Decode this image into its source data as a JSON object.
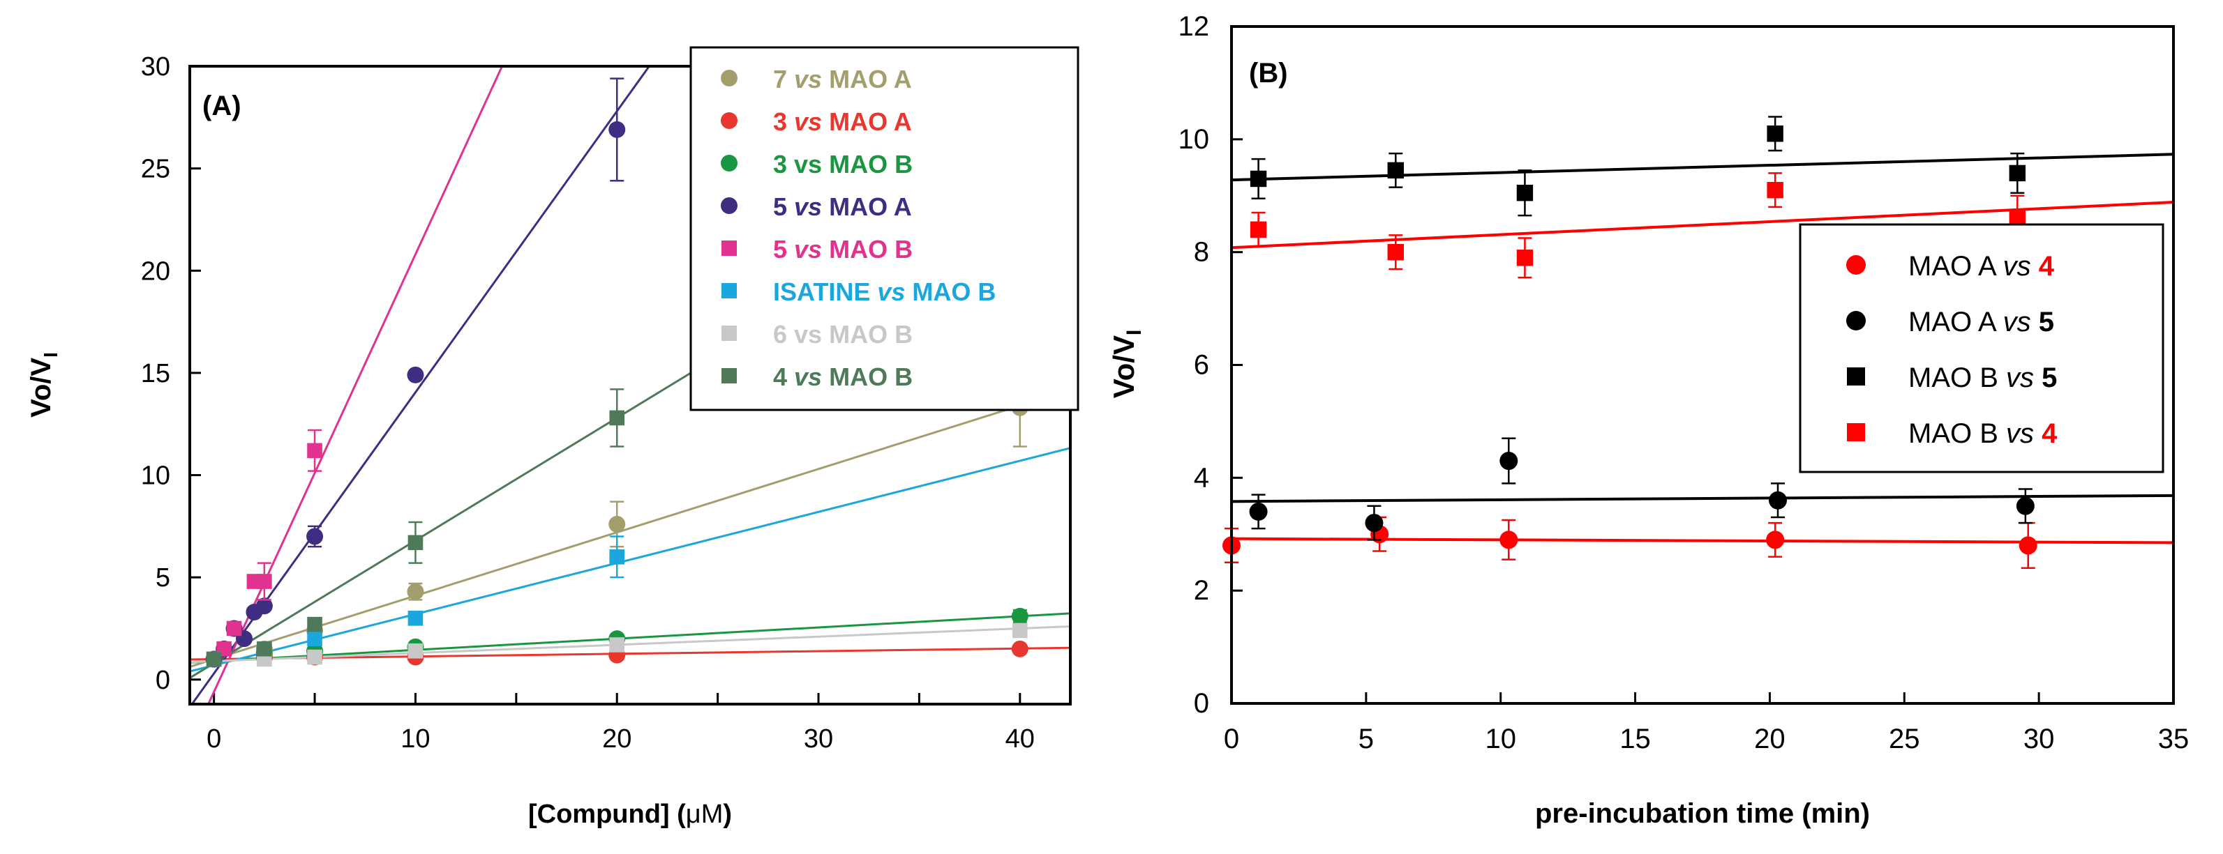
{
  "chart_data": [
    {
      "type": "scatter",
      "panel_label": "(A)",
      "xlabel_pre": "[Compund] (",
      "xlabel_mu": "μM",
      "xlabel_post": ")",
      "ylabel_main": "Vo/V",
      "ylabel_sub": "I",
      "xlim": [
        -1.2,
        42.5
      ],
      "ylim": [
        -1.2,
        30
      ],
      "xticks": [
        0,
        10,
        20,
        30,
        40
      ],
      "yticks": [
        0,
        5,
        10,
        15,
        20,
        25,
        30
      ],
      "legend_position": "top-right",
      "series": [
        {
          "num": "7",
          "vs": "vs",
          "enzyme": "MAO A",
          "vs_italic": true,
          "marker": "circle",
          "color": "#A39E6C",
          "x": [
            0,
            2.5,
            5,
            10,
            20,
            40
          ],
          "y": [
            1.0,
            1.5,
            2.4,
            4.3,
            7.6,
            13.3
          ],
          "err": [
            0,
            0,
            0,
            0.4,
            1.1,
            1.9
          ],
          "fit": {
            "slope": 0.31,
            "intercept": 1.0
          }
        },
        {
          "num": "3",
          "vs": "vs",
          "enzyme": "MAO A",
          "vs_italic": true,
          "marker": "circle",
          "color": "#E8372E",
          "x": [
            0,
            2.5,
            5,
            10,
            20,
            40
          ],
          "y": [
            1.0,
            1.1,
            1.1,
            1.1,
            1.2,
            1.5
          ],
          "err": [
            0,
            0,
            0,
            0,
            0,
            0
          ],
          "fit": {
            "slope": 0.013,
            "intercept": 1.0
          }
        },
        {
          "num": "3",
          "vs": "vs",
          "enzyme": "MAO B",
          "vs_italic": false,
          "marker": "circle",
          "color": "#1A9641",
          "x": [
            0,
            2.5,
            5,
            10,
            20,
            40
          ],
          "y": [
            1.0,
            1.3,
            1.4,
            1.6,
            2.0,
            3.1
          ],
          "err": [
            0,
            0,
            0,
            0,
            0,
            0.3
          ],
          "fit": {
            "slope": 0.055,
            "intercept": 0.9
          }
        },
        {
          "num": "5",
          "vs": "vs",
          "enzyme": "MAO A",
          "vs_italic": true,
          "marker": "circle",
          "color": "#3F2D82",
          "x": [
            0,
            0.5,
            1,
            1.5,
            2,
            2.5,
            5,
            10,
            20
          ],
          "y": [
            1.0,
            1.5,
            2.5,
            2.0,
            3.3,
            3.6,
            7.0,
            14.9,
            26.9
          ],
          "err": [
            0,
            0,
            0,
            0,
            0,
            0,
            0.5,
            0,
            2.5
          ],
          "fit": {
            "slope": 1.375,
            "intercept": 0.3
          }
        },
        {
          "num": "5",
          "vs": "vs",
          "enzyme": "MAO B",
          "vs_italic": true,
          "marker": "square",
          "color": "#E0328E",
          "x": [
            0,
            0.5,
            1,
            2,
            2.5,
            5
          ],
          "y": [
            1.0,
            1.5,
            2.5,
            4.8,
            4.8,
            11.2
          ],
          "err": [
            0,
            0,
            0,
            0,
            0.9,
            1.0
          ],
          "fit": {
            "slope": 2.14,
            "intercept": -0.6
          }
        },
        {
          "num": "ISATINE",
          "vs": "vs",
          "enzyme": "MAO B",
          "vs_italic": true,
          "marker": "square",
          "color": "#1BA6DD",
          "x": [
            0,
            2.5,
            5,
            10,
            20
          ],
          "y": [
            1.0,
            1.4,
            2.0,
            3.0,
            6.0
          ],
          "err": [
            0,
            0,
            0,
            0,
            1.0
          ],
          "fit": {
            "slope": 0.25,
            "intercept": 0.7
          }
        },
        {
          "num": "6",
          "vs": "vs",
          "enzyme": "MAO B",
          "vs_italic": false,
          "marker": "square",
          "color": "#C8C8C8",
          "x": [
            0,
            2.5,
            5,
            10,
            20,
            40
          ],
          "y": [
            1.0,
            1.0,
            1.1,
            1.4,
            1.7,
            2.4
          ],
          "err": [
            0,
            0,
            0,
            0,
            0,
            0
          ],
          "fit": {
            "slope": 0.04,
            "intercept": 0.9
          }
        },
        {
          "num": "4",
          "vs": "vs",
          "enzyme": "MAO B",
          "vs_italic": true,
          "marker": "square",
          "color": "#4F7A5A",
          "x": [
            0,
            2.5,
            5,
            10,
            20
          ],
          "y": [
            1.0,
            1.5,
            2.7,
            6.7,
            12.8
          ],
          "err": [
            0,
            0,
            0,
            1.0,
            1.4
          ],
          "fit": {
            "slope": 0.6,
            "intercept": 0.8
          }
        }
      ]
    },
    {
      "type": "scatter",
      "panel_label": "(B)",
      "xlabel": "pre-incubation time (min)",
      "ylabel_main": "Vo/V",
      "ylabel_sub": "I",
      "xlim": [
        0,
        35
      ],
      "ylim": [
        0,
        12
      ],
      "xticks": [
        0,
        5,
        10,
        15,
        20,
        25,
        30,
        35
      ],
      "yticks": [
        0,
        2,
        4,
        6,
        8,
        10,
        12
      ],
      "legend_position": "center-right",
      "series": [
        {
          "enzyme": "MAO A",
          "vs": "vs",
          "num": "4",
          "marker": "circle",
          "color": "#FF0000",
          "num_color": "#FF0000",
          "x": [
            0,
            5.5,
            10.3,
            20.2,
            29.6
          ],
          "y": [
            2.8,
            3.0,
            2.9,
            2.9,
            2.8
          ],
          "err": [
            0.3,
            0.3,
            0.35,
            0.3,
            0.4
          ],
          "fit": {
            "slope": -0.002,
            "intercept": 2.92
          }
        },
        {
          "enzyme": "MAO A",
          "vs": "vs",
          "num": "5",
          "marker": "circle",
          "color": "#000000",
          "num_color": "#000000",
          "x": [
            1,
            5.3,
            10.3,
            20.3,
            29.5
          ],
          "y": [
            3.4,
            3.2,
            4.3,
            3.6,
            3.5
          ],
          "err": [
            0.3,
            0.3,
            0.4,
            0.3,
            0.3
          ],
          "fit": {
            "slope": 0.003,
            "intercept": 3.58
          }
        },
        {
          "enzyme": "MAO B",
          "vs": "vs",
          "num": "5",
          "marker": "square",
          "color": "#000000",
          "num_color": "#000000",
          "x": [
            1,
            6.1,
            10.9,
            20.2,
            29.2
          ],
          "y": [
            9.3,
            9.45,
            9.05,
            10.1,
            9.4
          ],
          "err": [
            0.35,
            0.3,
            0.4,
            0.3,
            0.35
          ],
          "fit": {
            "slope": 0.013,
            "intercept": 9.28
          }
        },
        {
          "enzyme": "MAO B",
          "vs": "vs",
          "num": "4",
          "marker": "square",
          "color": "#FF0000",
          "num_color": "#FF0000",
          "x": [
            1,
            6.1,
            10.9,
            20.2,
            29.2
          ],
          "y": [
            8.4,
            8.0,
            7.9,
            9.1,
            8.6
          ],
          "err": [
            0.3,
            0.3,
            0.35,
            0.3,
            0.4
          ],
          "fit": {
            "slope": 0.023,
            "intercept": 8.08
          }
        }
      ]
    }
  ]
}
